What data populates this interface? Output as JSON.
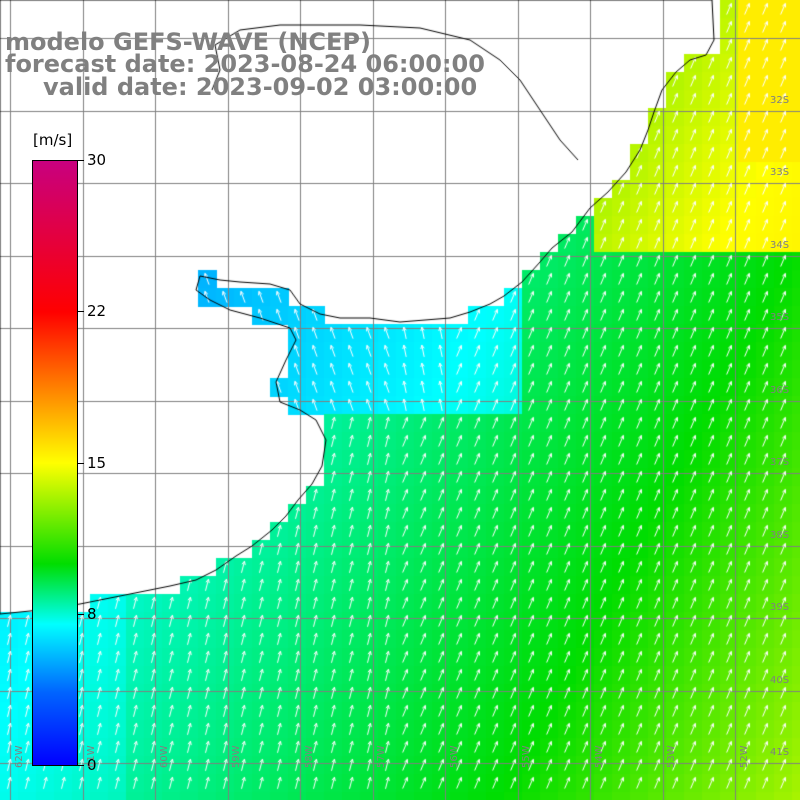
{
  "title": {
    "line1": "modelo GEFS-WAVE (NCEP)",
    "line2": "forecast date: 2023-08-24 06:00:00",
    "line3": "valid date: 2023-09-02 03:00:00"
  },
  "colorbar": {
    "unit": "[m/s]",
    "ticks": [
      "30",
      "22",
      "15",
      "8",
      "0"
    ],
    "colors": [
      "#c8007f",
      "#ff0000",
      "#ff8000",
      "#ffff00",
      "#00dd00",
      "#00ffff",
      "#0064ff",
      "#0000ff"
    ]
  },
  "grid": {
    "lat_labels": [
      "32S",
      "33S",
      "34S",
      "35S",
      "36S",
      "37S",
      "38S",
      "39S",
      "40S",
      "41S"
    ],
    "lon_labels": [
      "62W",
      "61W",
      "60W",
      "59W",
      "58W",
      "57W",
      "56W",
      "55W",
      "54W",
      "53W",
      "52W"
    ]
  },
  "map": {
    "variable": "wind speed",
    "land_color": "#ffffff",
    "coast_color": "#000000",
    "arrow_color": "#ffffff"
  }
}
